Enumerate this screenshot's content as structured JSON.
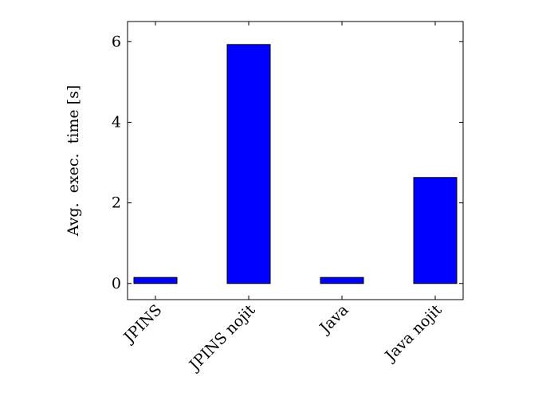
{
  "chart_data": {
    "type": "bar",
    "title": "",
    "xlabel": "",
    "ylabel": "Avg.  exec.  time [s]",
    "categories": [
      "JPINS",
      "JPINS nojit",
      "Java",
      "Java nojit"
    ],
    "values": [
      0.15,
      5.93,
      0.15,
      2.63
    ],
    "ylim": [
      -0.4,
      6.5
    ],
    "yticks": [
      0,
      2,
      4,
      6
    ],
    "bar_color": "#0000ff",
    "grid": false,
    "legend": "none"
  }
}
